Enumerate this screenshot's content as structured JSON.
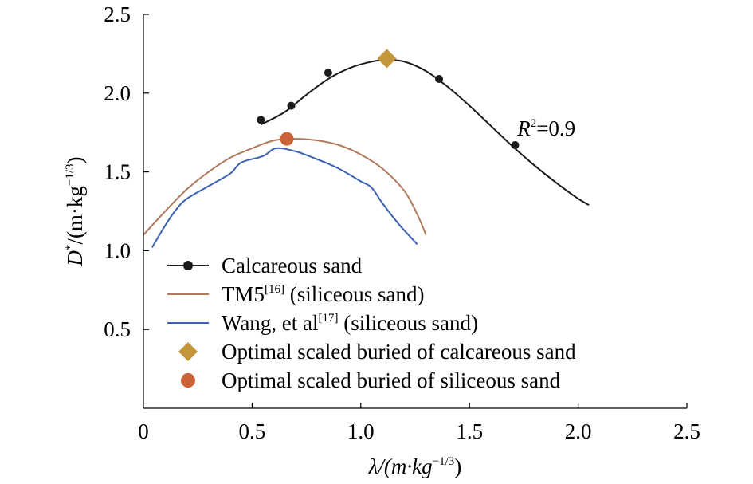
{
  "chart_data": {
    "type": "line",
    "xlabel": "λ/(m·kg",
    "xlabel_exp": "−1/3",
    "xlabel_close": ")",
    "ylabel": "D",
    "ylabel_star": "*",
    "ylabel_unit": "/(m·kg",
    "ylabel_exp": "−1/3",
    "ylabel_close": ")",
    "xlim": [
      0,
      2.5
    ],
    "ylim": [
      0,
      2.5
    ],
    "xticks": [
      "0",
      "0.5",
      "1.0",
      "1.5",
      "2.0",
      "2.5"
    ],
    "yticks": [
      "0.5",
      "1.0",
      "1.5",
      "2.0",
      "2.5"
    ],
    "grid": false,
    "legend_position": "lower-left",
    "annotation": {
      "prefix": "R",
      "exponent": "2",
      "suffix": "=0.9",
      "x": 1.72,
      "y": 1.73
    },
    "series": [
      {
        "name": "Calcareous sand",
        "kind": "points-with-fit",
        "color": "#1a1a1a",
        "points": [
          {
            "x": 0.54,
            "y": 1.83
          },
          {
            "x": 0.68,
            "y": 1.92
          },
          {
            "x": 0.85,
            "y": 2.13
          },
          {
            "x": 1.36,
            "y": 2.09
          },
          {
            "x": 1.71,
            "y": 1.67
          }
        ],
        "fit": [
          {
            "x": 0.54,
            "y": 1.8
          },
          {
            "x": 0.65,
            "y": 1.88
          },
          {
            "x": 0.75,
            "y": 1.99
          },
          {
            "x": 0.85,
            "y": 2.09
          },
          {
            "x": 0.95,
            "y": 2.16
          },
          {
            "x": 1.05,
            "y": 2.2
          },
          {
            "x": 1.12,
            "y": 2.21
          },
          {
            "x": 1.2,
            "y": 2.2
          },
          {
            "x": 1.3,
            "y": 2.14
          },
          {
            "x": 1.4,
            "y": 2.04
          },
          {
            "x": 1.5,
            "y": 1.92
          },
          {
            "x": 1.6,
            "y": 1.79
          },
          {
            "x": 1.7,
            "y": 1.66
          },
          {
            "x": 1.8,
            "y": 1.54
          },
          {
            "x": 1.9,
            "y": 1.43
          },
          {
            "x": 2.0,
            "y": 1.33
          },
          {
            "x": 2.05,
            "y": 1.29
          }
        ]
      },
      {
        "name": "TM5",
        "ref": "[16]",
        "suffix": " (siliceous sand)",
        "kind": "line",
        "color": "#b07a5c",
        "points": [
          {
            "x": 0.0,
            "y": 1.1
          },
          {
            "x": 0.1,
            "y": 1.25
          },
          {
            "x": 0.2,
            "y": 1.39
          },
          {
            "x": 0.3,
            "y": 1.5
          },
          {
            "x": 0.4,
            "y": 1.59
          },
          {
            "x": 0.5,
            "y": 1.65
          },
          {
            "x": 0.6,
            "y": 1.7
          },
          {
            "x": 0.7,
            "y": 1.71
          },
          {
            "x": 0.8,
            "y": 1.7
          },
          {
            "x": 0.9,
            "y": 1.67
          },
          {
            "x": 1.0,
            "y": 1.61
          },
          {
            "x": 1.1,
            "y": 1.52
          },
          {
            "x": 1.2,
            "y": 1.38
          },
          {
            "x": 1.26,
            "y": 1.23
          },
          {
            "x": 1.3,
            "y": 1.1
          }
        ]
      },
      {
        "name": "Wang, et al",
        "ref": "[17]",
        "suffix": " (siliceous sand)",
        "kind": "line",
        "color": "#3b62b0",
        "points": [
          {
            "x": 0.04,
            "y": 1.02
          },
          {
            "x": 0.1,
            "y": 1.16
          },
          {
            "x": 0.15,
            "y": 1.26
          },
          {
            "x": 0.2,
            "y": 1.33
          },
          {
            "x": 0.3,
            "y": 1.41
          },
          {
            "x": 0.4,
            "y": 1.49
          },
          {
            "x": 0.45,
            "y": 1.56
          },
          {
            "x": 0.55,
            "y": 1.6
          },
          {
            "x": 0.61,
            "y": 1.65
          },
          {
            "x": 0.7,
            "y": 1.63
          },
          {
            "x": 0.8,
            "y": 1.58
          },
          {
            "x": 0.9,
            "y": 1.52
          },
          {
            "x": 1.0,
            "y": 1.44
          },
          {
            "x": 1.05,
            "y": 1.4
          },
          {
            "x": 1.1,
            "y": 1.3
          },
          {
            "x": 1.18,
            "y": 1.16
          },
          {
            "x": 1.26,
            "y": 1.04
          }
        ]
      },
      {
        "name": "Optimal scaled buried of calcareous sand",
        "kind": "marker",
        "marker": "diamond",
        "color": "#c4963a",
        "points": [
          {
            "x": 1.12,
            "y": 2.22
          }
        ]
      },
      {
        "name": "Optimal scaled buried of siliceous sand",
        "kind": "marker",
        "marker": "circle",
        "color": "#cc6238",
        "points": [
          {
            "x": 0.66,
            "y": 1.71
          }
        ]
      }
    ]
  }
}
